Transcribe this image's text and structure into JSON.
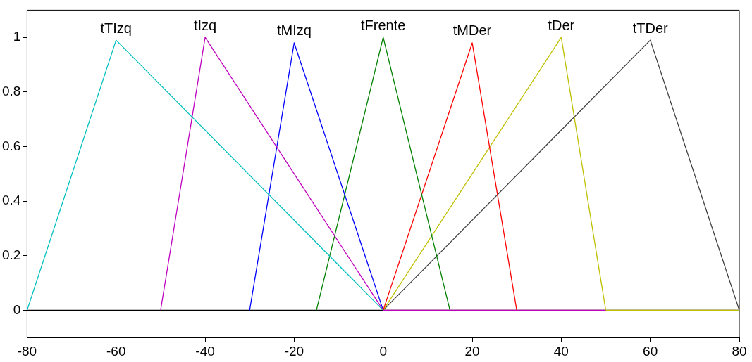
{
  "chart_data": {
    "type": "line",
    "xlim": [
      -80,
      80
    ],
    "xticks": [
      -80,
      -60,
      -40,
      -20,
      0,
      20,
      40,
      60,
      80
    ],
    "ylim": [
      -0.1,
      1.1
    ],
    "yticks": [
      0,
      0.2,
      0.4,
      0.6,
      0.8,
      1
    ],
    "grid": false,
    "legend": false,
    "marker": "none",
    "ref_lines": [
      {
        "axis": "y",
        "value": 0,
        "color": "#000000"
      }
    ],
    "series": [
      {
        "name": "tTIzq",
        "color": "#00bfbf",
        "x": [
          -80,
          -60,
          0
        ],
        "values": [
          0,
          0.99,
          0
        ]
      },
      {
        "name": "tIzq",
        "color": "#bf00bf",
        "x": [
          -50,
          -40,
          0,
          50
        ],
        "values": [
          0,
          1,
          0,
          0
        ]
      },
      {
        "name": "tMIzq",
        "color": "#0000ff",
        "x": [
          -30,
          -20,
          0
        ],
        "values": [
          0,
          0.98,
          0
        ]
      },
      {
        "name": "tFrente",
        "color": "#008000",
        "x": [
          -15,
          0,
          15
        ],
        "values": [
          0,
          1,
          0
        ]
      },
      {
        "name": "tMDer",
        "color": "#ff0000",
        "x": [
          0,
          20,
          30
        ],
        "values": [
          0,
          0.98,
          0
        ]
      },
      {
        "name": "tDer",
        "color": "#bfbf00",
        "x": [
          0,
          40,
          50,
          80
        ],
        "values": [
          0,
          1,
          0,
          0
        ]
      },
      {
        "name": "tTDer",
        "color": "#404040",
        "x": [
          0,
          60,
          80
        ],
        "values": [
          0,
          0.99,
          0
        ]
      }
    ]
  }
}
